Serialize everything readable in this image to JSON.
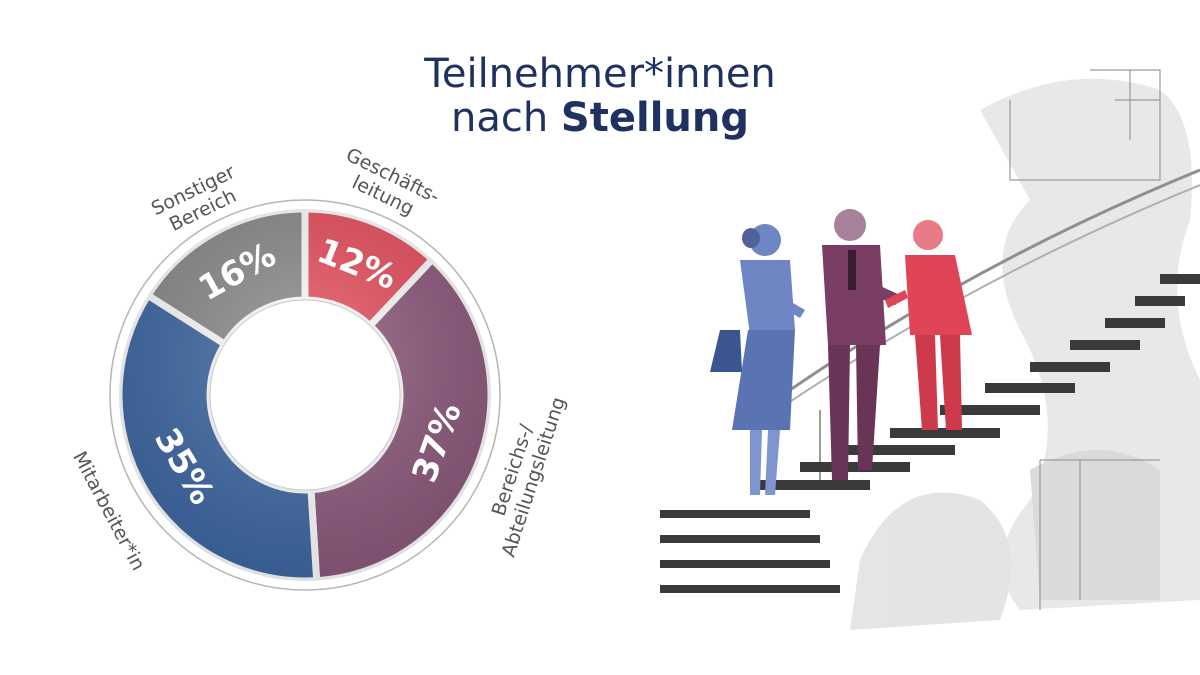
{
  "title": {
    "line1": "Teilnehmer*innen",
    "line2_prefix": "nach ",
    "line2_bold": "Stellung"
  },
  "chart_data": {
    "type": "pie",
    "donut": true,
    "title": "Teilnehmer*innen nach Stellung",
    "slices": [
      {
        "label_lines": [
          "Geschäfts-",
          "leitung"
        ],
        "value": 12,
        "display": "12%",
        "color": "#e8505f"
      },
      {
        "label_lines": [
          "Bereichs-/",
          "Abteilungsleitung"
        ],
        "value": 37,
        "display": "37%",
        "color": "#8e5a7d"
      },
      {
        "label_lines": [
          "Mitarbeiter*in"
        ],
        "value": 35,
        "display": "35%",
        "color": "#3f69a4"
      },
      {
        "label_lines": [
          "Sonstiger",
          "Bereich"
        ],
        "value": 16,
        "display": "16%",
        "color": "#8c8c8c"
      }
    ]
  },
  "illustration": {
    "icon": "business-people-on-stairs-sketch",
    "colors": {
      "woman": "#6e86c4",
      "man_center": "#7a3d63",
      "man_right": "#df4556",
      "ink": "#555555"
    }
  }
}
